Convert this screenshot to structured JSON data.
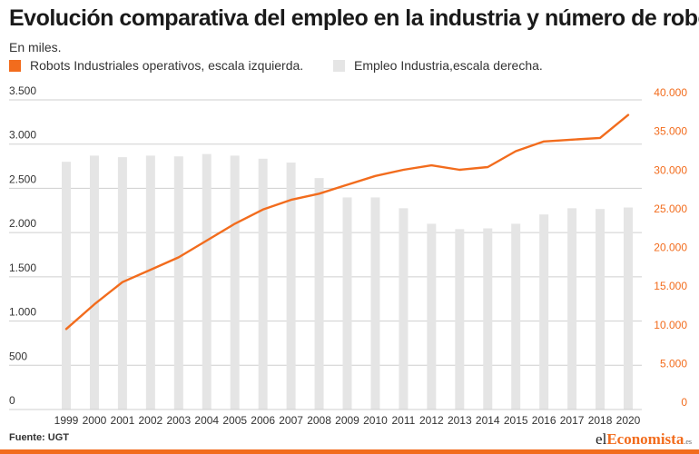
{
  "colors": {
    "accent": "#f26c1d",
    "bar": "#e5e5e5",
    "grid": "#cfcfcf",
    "text": "#333333"
  },
  "header": {
    "title": "Evolución comparativa del empleo en la industria y número de robots",
    "subtitle": "En miles."
  },
  "legend": {
    "robots": "Robots Industriales operativos, escala izquierda.",
    "employment": "Empleo Industria,escala derecha."
  },
  "footer": {
    "source": "Fuente: UGT",
    "brand_prefix": "el",
    "brand_accent": "Economista",
    "brand_suffix": ".es"
  },
  "chart_data": {
    "type": "bar+line",
    "title": "Evolución comparativa del empleo en la industria y número de robots",
    "subtitle": "En miles.",
    "categories": [
      "1999",
      "2000",
      "2001",
      "2002",
      "2003",
      "2004",
      "2005",
      "2006",
      "2007",
      "2008",
      "2009",
      "2010",
      "2011",
      "2012",
      "2013",
      "2014",
      "2015",
      "2016",
      "2017",
      "2018",
      "2020"
    ],
    "series": [
      {
        "name": "Robots Industriales operativos, escala izquierda.",
        "type": "line",
        "axis": "left",
        "values": [
          910,
          1190,
          1440,
          1580,
          1720,
          1910,
          2100,
          2260,
          2370,
          2440,
          2540,
          2640,
          2710,
          2760,
          2710,
          2740,
          2920,
          3030,
          3050,
          3070,
          3330
        ]
      },
      {
        "name": "Empleo Industria,escala derecha.",
        "type": "bar",
        "axis": "right",
        "values": [
          32000,
          32800,
          32600,
          32800,
          32700,
          33000,
          32800,
          32400,
          31900,
          29900,
          27400,
          27400,
          26000,
          24000,
          23300,
          23400,
          24000,
          25200,
          26000,
          25900,
          26100
        ]
      }
    ],
    "y_left": {
      "range": [
        0,
        3500
      ],
      "ticks": [
        0,
        500,
        1000,
        1500,
        2000,
        2500,
        3000,
        3500
      ],
      "tick_labels": [
        "0",
        "500",
        "1.000",
        "1.500",
        "2.000",
        "2.500",
        "3.000",
        "3.500"
      ]
    },
    "y_right": {
      "range": [
        0,
        40000
      ],
      "ticks": [
        0,
        5000,
        10000,
        15000,
        20000,
        25000,
        30000,
        35000,
        40000
      ],
      "tick_labels": [
        "0",
        "5.000",
        "10.000",
        "15.000",
        "20.000",
        "25.000",
        "30.000",
        "35.000",
        "40.000"
      ]
    },
    "grid": true,
    "legend_position": "top-left"
  }
}
